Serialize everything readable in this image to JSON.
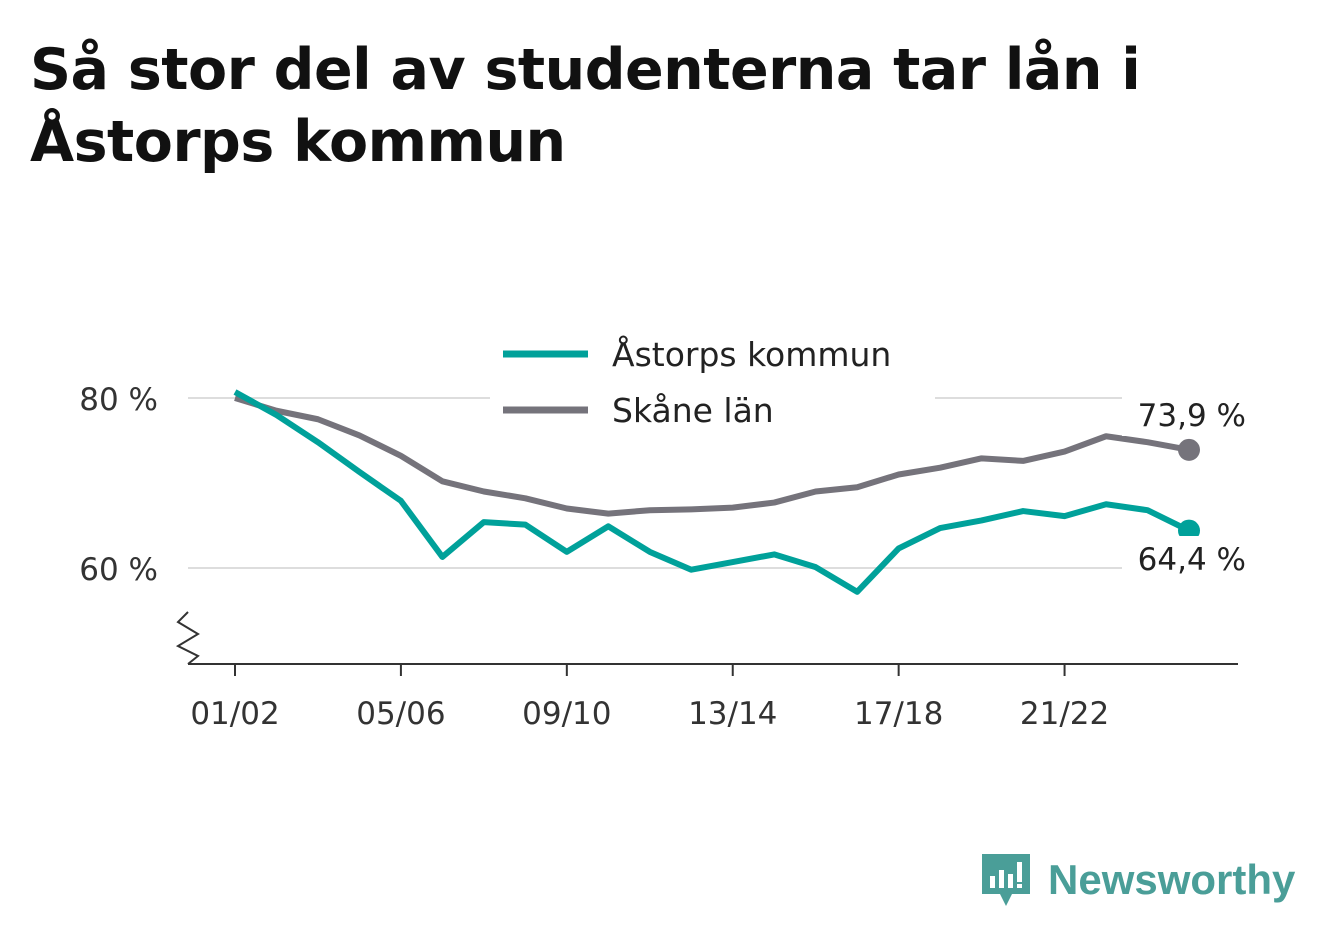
{
  "title": "Så stor del av studenterna tar lån i Åstorps kommun",
  "brand": {
    "name": "Newsworthy"
  },
  "colors": {
    "astorp": "#00a19a",
    "skane": "#75737b",
    "grid": "#dddddd",
    "axis": "#333333",
    "brand": "#4a9e98"
  },
  "chart_data": {
    "type": "line",
    "title": "Så stor del av studenterna tar lån i Åstorps kommun",
    "xlabel": "",
    "ylabel": "",
    "categories": [
      "01/02",
      "02/03",
      "03/04",
      "04/05",
      "05/06",
      "06/07",
      "07/08",
      "08/09",
      "09/10",
      "10/11",
      "11/12",
      "12/13",
      "13/14",
      "14/15",
      "15/16",
      "16/17",
      "17/18",
      "18/19",
      "19/20",
      "20/21",
      "21/22",
      "22/23",
      "23/24",
      "24/25"
    ],
    "x_tick_labels": [
      "01/02",
      "05/06",
      "09/10",
      "13/14",
      "17/18",
      "21/22"
    ],
    "y_ticks": [
      60,
      80
    ],
    "y_tick_labels": [
      "60 %",
      "80 %"
    ],
    "ylim": [
      49,
      86
    ],
    "y_axis_broken": true,
    "grid": true,
    "legend_position": "top-center",
    "series": [
      {
        "name": "Åstorps kommun",
        "color": "#00a19a",
        "values": [
          80.7,
          78.0,
          74.8,
          71.3,
          67.9,
          61.3,
          65.4,
          65.1,
          61.9,
          64.9,
          61.9,
          59.8,
          60.7,
          61.6,
          60.1,
          57.2,
          62.3,
          64.7,
          65.6,
          66.7,
          66.1,
          67.5,
          66.8,
          64.4
        ],
        "end_label": "64,4 %"
      },
      {
        "name": "Skåne län",
        "color": "#75737b",
        "values": [
          80.0,
          78.5,
          77.5,
          75.6,
          73.2,
          70.2,
          69.0,
          68.2,
          67.0,
          66.4,
          66.8,
          66.9,
          67.1,
          67.7,
          69.0,
          69.5,
          71.0,
          71.8,
          72.9,
          72.6,
          73.7,
          75.5,
          74.8,
          73.9
        ],
        "end_label": "73,9 %"
      }
    ]
  }
}
